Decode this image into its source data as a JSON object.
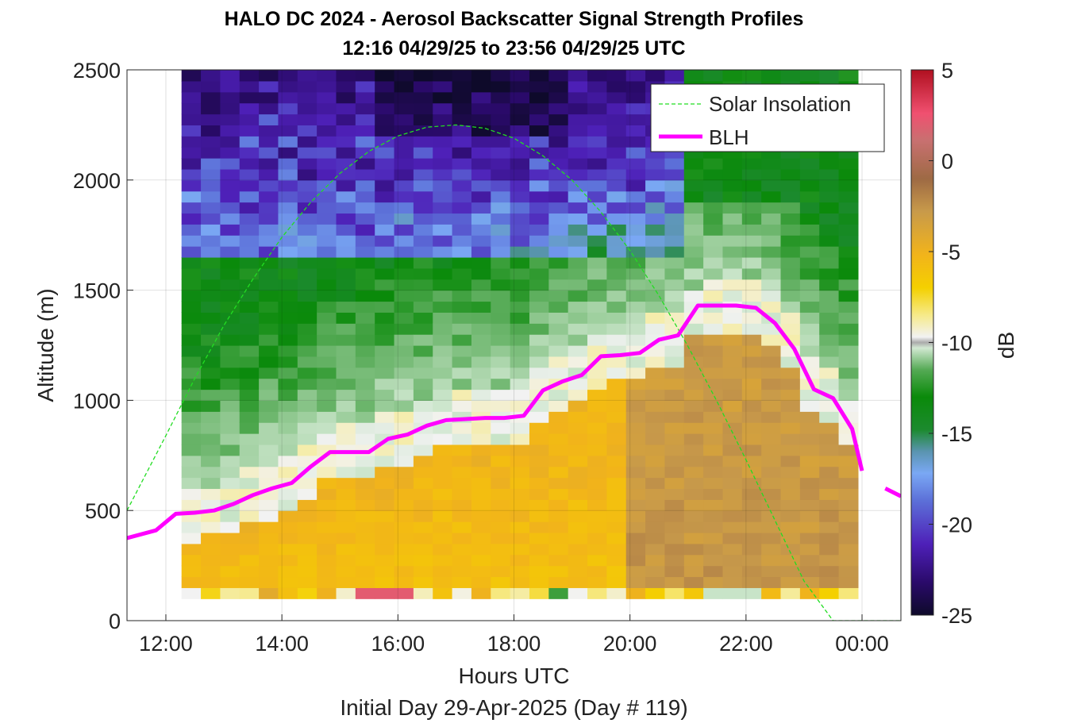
{
  "chart_data": {
    "type": "heatmap",
    "title": "HALO DC 2024 - Aerosol Backscatter Signal Strength Profiles",
    "subtitle": "12:16 04/29/25 to 23:56 04/29/25  UTC",
    "xlabel": "Hours UTC",
    "xlabel2": "Initial Day 29-Apr-2025 (Day # 119)",
    "ylabel": "Altitude (m)",
    "colorbar_label": "dB",
    "xlim": [
      11.33,
      24.67
    ],
    "ylim": [
      0,
      2500
    ],
    "x_ticks": [
      12,
      14,
      16,
      18,
      20,
      22,
      24
    ],
    "x_tick_labels": [
      "12:00",
      "14:00",
      "16:00",
      "18:00",
      "20:00",
      "22:00",
      "00:00"
    ],
    "y_ticks": [
      0,
      500,
      1000,
      1500,
      2000,
      2500
    ],
    "y_tick_labels": [
      "0",
      "500",
      "1000",
      "1500",
      "2000",
      "2500"
    ],
    "clim": [
      -25,
      5
    ],
    "colorbar_ticks": [
      5,
      0,
      -5,
      -10,
      -15,
      -20,
      -25
    ],
    "colorbar_tick_labels": [
      "5",
      "0",
      "-5",
      "-10",
      "-15",
      "-20",
      "-25"
    ],
    "grid": true,
    "legend_position": "top-right",
    "data_time_range_hours": [
      12.27,
      23.93
    ],
    "data_alt_range_m": [
      100,
      2500
    ],
    "series": [
      {
        "name": "Solar Insolation",
        "style": "dashed",
        "color": "#22dd22",
        "x": [
          11.33,
          12.0,
          12.5,
          13.0,
          13.5,
          14.0,
          14.5,
          15.0,
          15.5,
          16.0,
          16.5,
          17.0,
          17.5,
          18.0,
          18.5,
          19.0,
          19.5,
          20.0,
          20.5,
          21.0,
          21.5,
          22.0,
          22.5,
          23.0,
          23.5,
          23.9,
          24.67
        ],
        "y": [
          500,
          840,
          1100,
          1340,
          1550,
          1740,
          1900,
          2030,
          2130,
          2200,
          2240,
          2250,
          2235,
          2190,
          2110,
          2000,
          1855,
          1680,
          1475,
          1245,
          995,
          730,
          455,
          180,
          0,
          0,
          0
        ]
      },
      {
        "name": "BLH",
        "style": "solid",
        "color": "#ff00ff",
        "x": [
          11.33,
          11.83,
          12.17,
          12.5,
          12.83,
          13.17,
          13.5,
          13.83,
          14.17,
          14.5,
          14.83,
          15.17,
          15.5,
          15.83,
          16.17,
          16.5,
          16.83,
          17.17,
          17.5,
          17.83,
          18.17,
          18.5,
          18.83,
          19.17,
          19.5,
          19.83,
          20.17,
          20.5,
          20.83,
          21.17,
          21.5,
          21.83,
          22.17,
          22.5,
          22.83,
          23.17,
          23.5,
          23.83,
          24.0
        ],
        "y": [
          375,
          410,
          485,
          490,
          500,
          530,
          570,
          600,
          625,
          700,
          765,
          765,
          765,
          825,
          845,
          885,
          910,
          915,
          920,
          920,
          930,
          1045,
          1085,
          1115,
          1200,
          1205,
          1215,
          1275,
          1295,
          1430,
          1430,
          1430,
          1420,
          1350,
          1235,
          1050,
          1010,
          870,
          680
        ],
        "x_extra": [
          24.4,
          24.67
        ],
        "y_extra": [
          600,
          565
        ]
      }
    ]
  }
}
